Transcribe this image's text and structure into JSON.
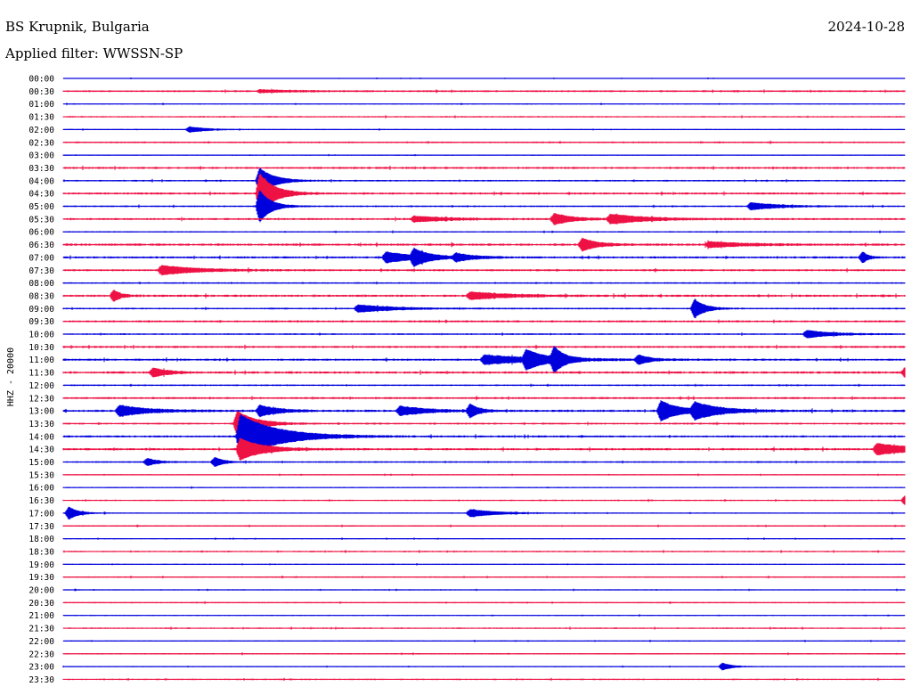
{
  "header": {
    "station": "BS Krupnik, Bulgaria",
    "date": "2024-10-28",
    "filter": "Applied filter: WWSSN-SP"
  },
  "colors": {
    "even_trace": "#0000dd",
    "odd_trace": "#ee1144",
    "text": "#000000"
  },
  "chart_data": {
    "type": "line",
    "title": "BS Krupnik, Bulgaria",
    "ylabel": "HHZ - 20000",
    "rows": [
      "00:00",
      "00:30",
      "01:00",
      "01:30",
      "02:00",
      "02:30",
      "03:00",
      "03:30",
      "04:00",
      "04:30",
      "05:00",
      "05:30",
      "06:00",
      "06:30",
      "07:00",
      "07:30",
      "08:00",
      "08:30",
      "09:00",
      "09:30",
      "10:00",
      "10:30",
      "11:00",
      "11:30",
      "12:00",
      "12:30",
      "13:00",
      "13:30",
      "14:00",
      "14:30",
      "15:00",
      "15:30",
      "16:00",
      "16:30",
      "17:00",
      "17:30",
      "18:00",
      "18:30",
      "19:00",
      "19:30",
      "20:00",
      "20:30",
      "21:00",
      "21:30",
      "22:00",
      "22:30",
      "23:00",
      "23:30"
    ],
    "row_minutes": 30,
    "noise_levels": [
      0.4,
      0.8,
      0.5,
      0.6,
      0.5,
      0.7,
      0.5,
      0.9,
      0.7,
      0.9,
      0.7,
      0.9,
      0.6,
      1.0,
      0.9,
      0.9,
      0.7,
      1.0,
      0.7,
      0.9,
      0.7,
      0.9,
      0.9,
      1.0,
      0.7,
      0.9,
      1.0,
      0.8,
      0.9,
      1.0,
      0.7,
      0.5,
      0.5,
      0.6,
      0.5,
      0.6,
      0.5,
      0.6,
      0.5,
      0.6,
      0.5,
      0.6,
      0.5,
      0.6,
      0.5,
      0.6,
      0.5,
      0.6
    ],
    "events": [
      {
        "row": "00:30",
        "minute": 7,
        "amplitude": 1.5,
        "duration": 2
      },
      {
        "row": "02:00",
        "minute": 4.5,
        "amplitude": 3,
        "duration": 1
      },
      {
        "row": "04:00",
        "minute": 7,
        "amplitude": 14,
        "duration": 0.8
      },
      {
        "row": "04:30",
        "minute": 7,
        "amplitude": 22,
        "duration": 0.8
      },
      {
        "row": "05:00",
        "minute": 7,
        "amplitude": 18,
        "duration": 0.6
      },
      {
        "row": "05:00",
        "minute": 24.5,
        "amplitude": 4,
        "duration": 1.5
      },
      {
        "row": "05:30",
        "minute": 12.5,
        "amplitude": 3,
        "duration": 2
      },
      {
        "row": "05:30",
        "minute": 17.5,
        "amplitude": 6,
        "duration": 1
      },
      {
        "row": "05:30",
        "minute": 19.5,
        "amplitude": 5,
        "duration": 2
      },
      {
        "row": "06:30",
        "minute": 18.5,
        "amplitude": 7,
        "duration": 0.8
      },
      {
        "row": "06:30",
        "minute": 23,
        "amplitude": 3,
        "duration": 2
      },
      {
        "row": "07:00",
        "minute": 11.5,
        "amplitude": 6,
        "duration": 1.5
      },
      {
        "row": "07:00",
        "minute": 12.5,
        "amplitude": 8,
        "duration": 0.8
      },
      {
        "row": "07:00",
        "minute": 14,
        "amplitude": 4,
        "duration": 1
      },
      {
        "row": "07:00",
        "minute": 28.5,
        "amplitude": 6,
        "duration": 0.3
      },
      {
        "row": "07:30",
        "minute": 3.5,
        "amplitude": 5,
        "duration": 2
      },
      {
        "row": "08:30",
        "minute": 1.8,
        "amplitude": 6,
        "duration": 0.4
      },
      {
        "row": "08:30",
        "minute": 14.5,
        "amplitude": 4,
        "duration": 2
      },
      {
        "row": "09:00",
        "minute": 10.5,
        "amplitude": 4,
        "duration": 2
      },
      {
        "row": "09:00",
        "minute": 22.5,
        "amplitude": 10,
        "duration": 0.6
      },
      {
        "row": "10:00",
        "minute": 26.5,
        "amplitude": 4,
        "duration": 1.5
      },
      {
        "row": "11:00",
        "minute": 15,
        "amplitude": 5,
        "duration": 3
      },
      {
        "row": "11:00",
        "minute": 16.5,
        "amplitude": 9,
        "duration": 1
      },
      {
        "row": "11:00",
        "minute": 17.5,
        "amplitude": 12,
        "duration": 0.5
      },
      {
        "row": "11:00",
        "minute": 20.5,
        "amplitude": 5,
        "duration": 0.6
      },
      {
        "row": "11:30",
        "minute": 3.2,
        "amplitude": 5,
        "duration": 0.8
      },
      {
        "row": "11:30",
        "minute": 30,
        "amplitude": 5,
        "duration": 1
      },
      {
        "row": "13:00",
        "minute": 2,
        "amplitude": 6,
        "duration": 1.5
      },
      {
        "row": "13:00",
        "minute": 7,
        "amplitude": 6,
        "duration": 1
      },
      {
        "row": "13:00",
        "minute": 12,
        "amplitude": 5,
        "duration": 1.5
      },
      {
        "row": "13:00",
        "minute": 14.5,
        "amplitude": 7,
        "duration": 0.5
      },
      {
        "row": "13:00",
        "minute": 21.3,
        "amplitude": 11,
        "duration": 1
      },
      {
        "row": "13:00",
        "minute": 22.5,
        "amplitude": 8,
        "duration": 1.5
      },
      {
        "row": "13:30",
        "minute": 6.2,
        "amplitude": 14,
        "duration": 1
      },
      {
        "row": "14:00",
        "minute": 6.3,
        "amplitude": 24,
        "duration": 2
      },
      {
        "row": "14:30",
        "minute": 6.3,
        "amplitude": 12,
        "duration": 1.2
      },
      {
        "row": "14:30",
        "minute": 29,
        "amplitude": 6,
        "duration": 2
      },
      {
        "row": "15:00",
        "minute": 3,
        "amplitude": 4,
        "duration": 0.6
      },
      {
        "row": "15:00",
        "minute": 5.4,
        "amplitude": 5,
        "duration": 0.5
      },
      {
        "row": "16:30",
        "minute": 30,
        "amplitude": 5,
        "duration": 1
      },
      {
        "row": "17:00",
        "minute": 0.2,
        "amplitude": 7,
        "duration": 0.5
      },
      {
        "row": "17:00",
        "minute": 14.5,
        "amplitude": 4,
        "duration": 1.5
      },
      {
        "row": "23:00",
        "minute": 23.5,
        "amplitude": 4,
        "duration": 0.5
      }
    ]
  }
}
